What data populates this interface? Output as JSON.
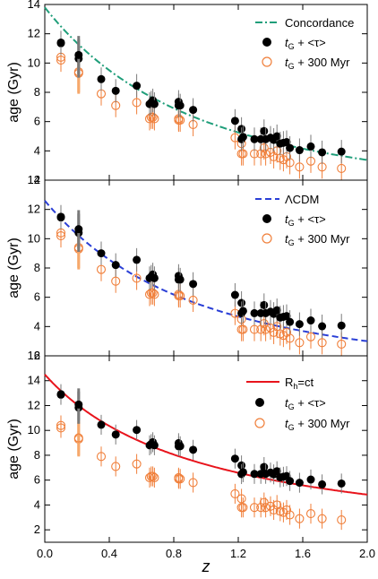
{
  "chart_data": {
    "type": "scatter",
    "x_axis": {
      "label": "z",
      "ticks": [
        "0.0",
        "0.4",
        "0.8",
        "1.2",
        "1.6",
        "2.0"
      ],
      "range": [
        0,
        2.0
      ]
    },
    "colors": {
      "model_concordance": "#1f9e7a",
      "model_lcdm": "#2a3fd6",
      "model_rhct": "#e8141c",
      "open_points": "#f07f3a",
      "filled_points": "#000000",
      "error_bar": "#7a7a7a",
      "orange_error_bar": "#f6a86b"
    },
    "z_values": [
      0.1,
      0.1,
      0.21,
      0.21,
      0.35,
      0.44,
      0.57,
      0.65,
      0.66,
      0.67,
      0.68,
      0.83,
      0.83,
      0.84,
      0.92,
      1.18,
      1.22,
      1.22,
      1.23,
      1.3,
      1.34,
      1.36,
      1.37,
      1.4,
      1.42,
      1.44,
      1.46,
      1.48,
      1.5,
      1.52,
      1.58,
      1.65,
      1.72,
      1.84
    ],
    "open_values": [
      10.2,
      10.4,
      9.3,
      9.4,
      7.9,
      7.1,
      7.3,
      6.2,
      6.3,
      6.3,
      6.2,
      6.1,
      6.2,
      6.1,
      5.8,
      4.9,
      4.5,
      3.8,
      3.8,
      3.8,
      3.8,
      4.2,
      3.8,
      3.9,
      3.6,
      4.0,
      3.5,
      3.4,
      3.6,
      3.2,
      2.9,
      3.3,
      2.9,
      2.8
    ],
    "offsets": [
      0.0,
      0.1,
      0.55,
      1.5
    ],
    "panels": [
      {
        "model_name": "Concordance",
        "legend_filled_main": "t",
        "legend_filled_sub": "G",
        "legend_filled_rest": " + <τ>",
        "legend_open_main": "t",
        "legend_open_sub": "G",
        "legend_open_rest": " + 300 Myr",
        "y_label": "age (Gyr)",
        "y_ticks": [
          "2",
          "4",
          "6",
          "8",
          "10",
          "12",
          "14"
        ],
        "y_range": [
          2,
          14
        ],
        "model_curve": {
          "type": "lcdm",
          "age0": 13.8,
          "omega_m": 0.27
        },
        "filled_offset_index": 0
      },
      {
        "model_name": "ΛCDM",
        "legend_filled_main": "t",
        "legend_filled_sub": "G",
        "legend_filled_rest": " + <τ>",
        "legend_open_main": "t",
        "legend_open_sub": "G",
        "legend_open_rest": " + 300 Myr",
        "y_label": "age (Gyr)",
        "y_ticks": [
          "2",
          "4",
          "6",
          "8",
          "10",
          "12",
          "14"
        ],
        "y_range": [
          2,
          14
        ],
        "model_curve": {
          "type": "lcdm",
          "age0": 12.6,
          "omega_m": 0.31
        },
        "filled_offset_index": 1
      },
      {
        "model_name_main": "R",
        "model_name_sub": "h",
        "model_name_rest": "=ct",
        "legend_filled_main": "t",
        "legend_filled_sub": "G",
        "legend_filled_rest": " + <τ>",
        "legend_open_main": "t",
        "legend_open_sub": "G",
        "legend_open_rest": " + 300 Myr",
        "y_label": "age (Gyr)",
        "y_ticks": [
          "2",
          "4",
          "6",
          "8",
          "10",
          "12",
          "14",
          "16"
        ],
        "y_range": [
          1,
          16
        ],
        "model_curve": {
          "type": "rhct",
          "age0": 14.5
        },
        "filled_offset_index": 3
      }
    ]
  }
}
